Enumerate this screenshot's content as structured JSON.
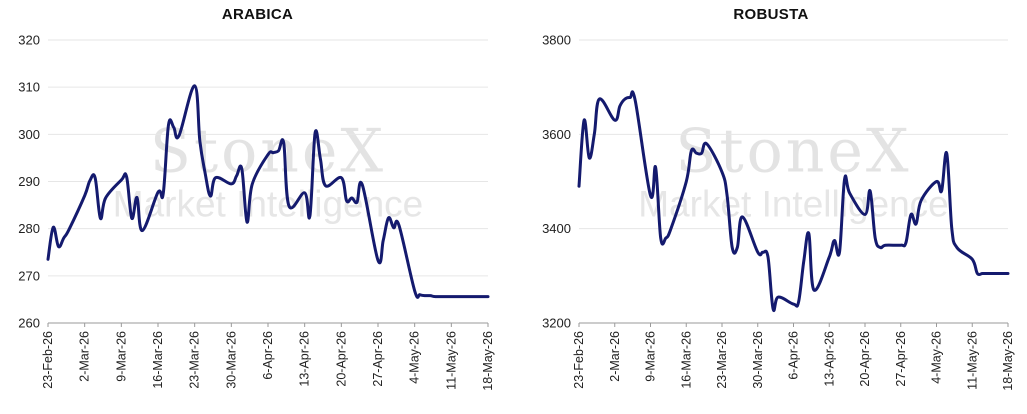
{
  "watermark": {
    "brand": "StoneX",
    "sub": "Market Intelligence"
  },
  "colors": {
    "line": "#141a6e",
    "grid": "#e6e6e6",
    "axis": "#9a9a9a"
  },
  "chart_data": [
    {
      "type": "line",
      "title": "ARABICA",
      "xlabel": "",
      "ylabel": "",
      "x_ticks": [
        "23-Feb-26",
        "2-Mar-26",
        "9-Mar-26",
        "16-Mar-26",
        "23-Mar-26",
        "30-Mar-26",
        "6-Apr-26",
        "13-Apr-26",
        "20-Apr-26",
        "27-Apr-26",
        "4-May-26",
        "11-May-26",
        "18-May-26"
      ],
      "y_ticks": [
        "260",
        "270",
        "280",
        "290",
        "300",
        "310",
        "320"
      ],
      "ylim": [
        260,
        320
      ],
      "xlim": [
        "2026-02-23",
        "2026-05-18"
      ],
      "grid": true,
      "series": [
        {
          "x": [
            "2026-02-23",
            "2026-02-24",
            "2026-02-25",
            "2026-02-26",
            "2026-02-27",
            "2026-03-02",
            "2026-03-03",
            "2026-03-04",
            "2026-03-05",
            "2026-03-06",
            "2026-03-09",
            "2026-03-10",
            "2026-03-11",
            "2026-03-12",
            "2026-03-13",
            "2026-03-16",
            "2026-03-17",
            "2026-03-18",
            "2026-03-19",
            "2026-03-20",
            "2026-03-23",
            "2026-03-24",
            "2026-03-25",
            "2026-03-26",
            "2026-03-27",
            "2026-03-30",
            "2026-03-31",
            "2026-04-01",
            "2026-04-02",
            "2026-04-03",
            "2026-04-06",
            "2026-04-07",
            "2026-04-08",
            "2026-04-09",
            "2026-04-10",
            "2026-04-13",
            "2026-04-14",
            "2026-04-15",
            "2026-04-16",
            "2026-04-17",
            "2026-04-20",
            "2026-04-21",
            "2026-04-22",
            "2026-04-23",
            "2026-04-24",
            "2026-04-27",
            "2026-04-28",
            "2026-04-29",
            "2026-04-30",
            "2026-05-01",
            "2026-05-04",
            "2026-05-05",
            "2026-05-06",
            "2026-05-07",
            "2026-05-08",
            "2026-05-11",
            "2026-05-12",
            "2026-05-13",
            "2026-05-14",
            "2026-05-15",
            "2026-05-18"
          ],
          "values": [
            273.5,
            280.3,
            276.2,
            278.0,
            279.8,
            287.0,
            290.2,
            290.8,
            282.2,
            286.5,
            290.3,
            291.0,
            282.2,
            286.6,
            279.6,
            287.7,
            287.4,
            302.0,
            301.5,
            299.7,
            310.3,
            298.5,
            291.8,
            286.9,
            290.8,
            289.5,
            291.2,
            292.7,
            281.4,
            289.5,
            295.7,
            296.1,
            296.5,
            298.2,
            284.8,
            287.6,
            282.7,
            300.3,
            294.8,
            289.1,
            290.8,
            285.9,
            286.5,
            285.6,
            289.3,
            273.3,
            277.5,
            282.3,
            280.2,
            280.7,
            266.8,
            266.0,
            265.8,
            265.8,
            265.6,
            265.6,
            265.6,
            265.6,
            265.6,
            265.6,
            265.6
          ]
        }
      ]
    },
    {
      "type": "line",
      "title": "ROBUSTA",
      "xlabel": "",
      "ylabel": "",
      "x_ticks": [
        "23-Feb-26",
        "2-Mar-26",
        "9-Mar-26",
        "16-Mar-26",
        "23-Mar-26",
        "30-Mar-26",
        "6-Apr-26",
        "13-Apr-26",
        "20-Apr-26",
        "27-Apr-26",
        "4-May-26",
        "11-May-26",
        "18-May-26"
      ],
      "y_ticks": [
        "3200",
        "3400",
        "3600",
        "3800"
      ],
      "ylim": [
        3200,
        3800
      ],
      "xlim": [
        "2026-02-23",
        "2026-05-18"
      ],
      "grid": true,
      "series": [
        {
          "x": [
            "2026-02-23",
            "2026-02-24",
            "2026-02-25",
            "2026-02-26",
            "2026-02-27",
            "2026-03-02",
            "2026-03-03",
            "2026-03-04",
            "2026-03-05",
            "2026-03-06",
            "2026-03-09",
            "2026-03-10",
            "2026-03-11",
            "2026-03-12",
            "2026-03-13",
            "2026-03-16",
            "2026-03-17",
            "2026-03-18",
            "2026-03-19",
            "2026-03-20",
            "2026-03-23",
            "2026-03-24",
            "2026-03-25",
            "2026-03-26",
            "2026-03-27",
            "2026-03-30",
            "2026-03-31",
            "2026-04-01",
            "2026-04-02",
            "2026-04-03",
            "2026-04-06",
            "2026-04-07",
            "2026-04-08",
            "2026-04-09",
            "2026-04-10",
            "2026-04-13",
            "2026-04-14",
            "2026-04-15",
            "2026-04-16",
            "2026-04-17",
            "2026-04-20",
            "2026-04-21",
            "2026-04-22",
            "2026-04-23",
            "2026-04-24",
            "2026-04-27",
            "2026-04-28",
            "2026-04-29",
            "2026-04-30",
            "2026-05-01",
            "2026-05-04",
            "2026-05-05",
            "2026-05-06",
            "2026-05-07",
            "2026-05-08",
            "2026-05-11",
            "2026-05-12",
            "2026-05-13",
            "2026-05-14",
            "2026-05-15",
            "2026-05-18"
          ],
          "values": [
            3490,
            3630,
            3550,
            3600,
            3675,
            3630,
            3660,
            3675,
            3678,
            3672,
            3470,
            3530,
            3380,
            3380,
            3400,
            3500,
            3565,
            3560,
            3560,
            3580,
            3520,
            3470,
            3360,
            3360,
            3425,
            3350,
            3350,
            3340,
            3230,
            3255,
            3240,
            3245,
            3330,
            3390,
            3270,
            3340,
            3375,
            3350,
            3505,
            3475,
            3430,
            3480,
            3380,
            3360,
            3365,
            3365,
            3370,
            3430,
            3410,
            3460,
            3500,
            3480,
            3560,
            3400,
            3360,
            3335,
            3305,
            3305,
            3305,
            3305,
            3305
          ]
        }
      ]
    }
  ]
}
